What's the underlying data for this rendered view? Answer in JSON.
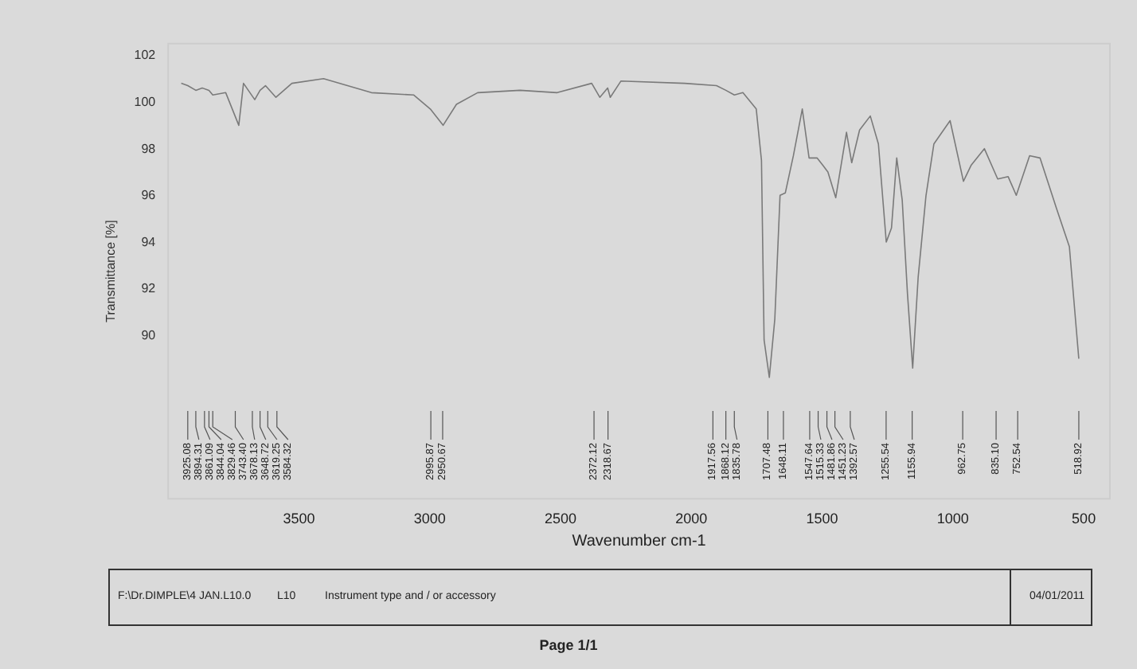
{
  "chart_data": {
    "type": "line",
    "xlabel": "Wavenumber cm-1",
    "ylabel": "Transmittance [%]",
    "color": "#7a7a7a",
    "grid": false,
    "marker": "none",
    "xlim": [
      4000,
      400
    ],
    "xticks": [
      3500,
      3000,
      2500,
      2000,
      1500,
      1000,
      500
    ],
    "ylim": [
      83,
      102.5
    ],
    "yticks": [
      90,
      92,
      94,
      96,
      98,
      100,
      102
    ],
    "x": [
      3950,
      3925.08,
      3894.31,
      3870,
      3844.04,
      3829.46,
      3780,
      3730,
      3712,
      3669,
      3648.72,
      3628,
      3588,
      3527,
      3406,
      3223,
      3061,
      2998,
      2949,
      2898,
      2817,
      2655,
      2513,
      2381,
      2350,
      2320,
      2310,
      2269,
      2026,
      1904,
      1868.12,
      1835.78,
      1803,
      1752,
      1732,
      1722,
      1702,
      1681,
      1661,
      1641,
      1610,
      1576,
      1550,
      1519,
      1498,
      1478,
      1448,
      1407,
      1387,
      1357,
      1316,
      1285,
      1255,
      1235,
      1215,
      1194,
      1174,
      1154,
      1133,
      1103,
      1073,
      1011,
      960,
      930,
      880,
      829,
      789,
      758,
      707,
      667,
      606,
      555,
      525,
      519
    ],
    "values": [
      100.8,
      100.7,
      100.5,
      100.6,
      100.5,
      100.3,
      100.4,
      99.0,
      100.8,
      100.1,
      100.5,
      100.7,
      100.2,
      100.8,
      101.0,
      100.4,
      100.3,
      99.7,
      99.0,
      99.9,
      100.4,
      100.5,
      100.4,
      100.8,
      100.2,
      100.6,
      100.2,
      100.9,
      100.8,
      100.7,
      100.5,
      100.3,
      100.4,
      99.7,
      97.5,
      89.8,
      88.2,
      90.7,
      96.0,
      96.1,
      97.7,
      99.7,
      97.6,
      97.6,
      97.3,
      97.0,
      95.9,
      98.7,
      97.4,
      98.8,
      99.4,
      98.2,
      94.0,
      94.6,
      97.6,
      95.8,
      91.8,
      88.6,
      92.5,
      96.0,
      98.2,
      99.2,
      96.6,
      97.3,
      98.0,
      96.7,
      96.8,
      96.0,
      97.7,
      97.6,
      95.5,
      93.8,
      89.8,
      89.0
    ],
    "annotations": [
      {
        "text": "3925.08",
        "x": 3925.08
      },
      {
        "text": "3894.31",
        "x": 3894.31
      },
      {
        "text": "3861.09",
        "x": 3861.09
      },
      {
        "text": "3844.04",
        "x": 3844.04
      },
      {
        "text": "3829.46",
        "x": 3829.46
      },
      {
        "text": "3743.40",
        "x": 3743.4
      },
      {
        "text": "3678.13",
        "x": 3678.13
      },
      {
        "text": "3648.72",
        "x": 3648.72
      },
      {
        "text": "3619.25",
        "x": 3619.25
      },
      {
        "text": "3584.32",
        "x": 3584.32
      },
      {
        "text": "2995.87",
        "x": 2995.87
      },
      {
        "text": "2950.67",
        "x": 2950.67
      },
      {
        "text": "2372.12",
        "x": 2372.12
      },
      {
        "text": "2318.67",
        "x": 2318.67
      },
      {
        "text": "1917.56",
        "x": 1917.56
      },
      {
        "text": "1868.12",
        "x": 1868.12
      },
      {
        "text": "1835.78",
        "x": 1835.78
      },
      {
        "text": "1707.48",
        "x": 1707.48
      },
      {
        "text": "1648.11",
        "x": 1648.11
      },
      {
        "text": "1547.64",
        "x": 1547.64
      },
      {
        "text": "1515.33",
        "x": 1515.33
      },
      {
        "text": "1481.86",
        "x": 1481.86
      },
      {
        "text": "1451.23",
        "x": 1451.23
      },
      {
        "text": "1392.57",
        "x": 1392.57
      },
      {
        "text": "1255.54",
        "x": 1255.54
      },
      {
        "text": "1155.94",
        "x": 1155.94
      },
      {
        "text": "962.75",
        "x": 962.75
      },
      {
        "text": "835.10",
        "x": 835.1
      },
      {
        "text": "752.54",
        "x": 752.54
      },
      {
        "text": "518.92",
        "x": 518.92
      },
      "F:\\Dr.DIMPLE\\4 JAN.L10.0",
      "L10",
      "Instrument type and / or accessory",
      "04/01/2011",
      "Page 1/1"
    ]
  }
}
